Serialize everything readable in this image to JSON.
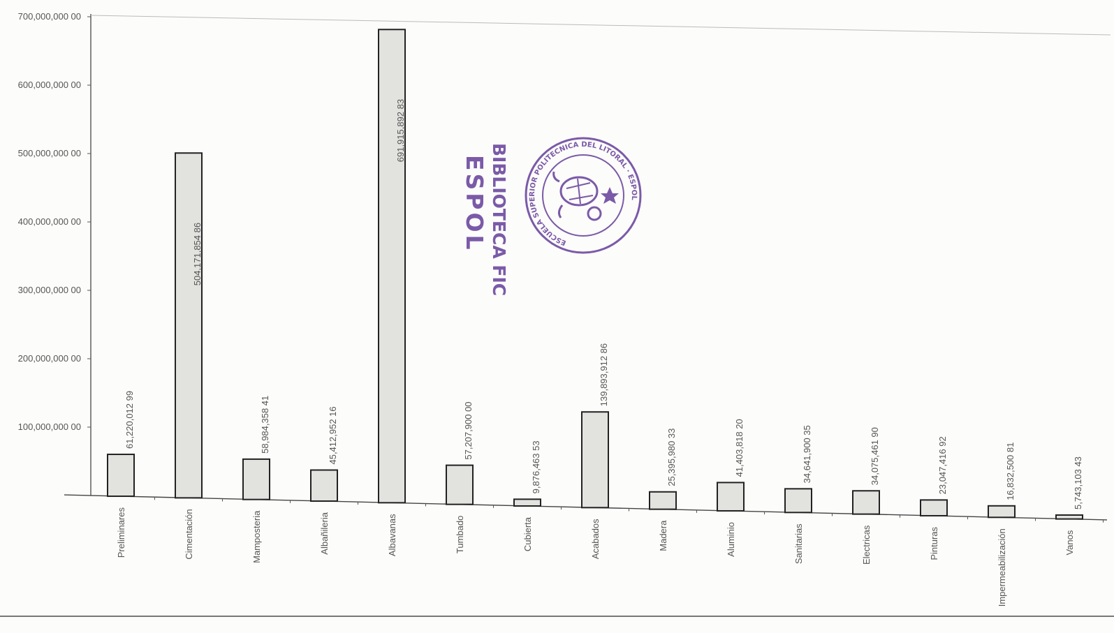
{
  "chart_data": {
    "type": "bar",
    "categories": [
      "Preliminares",
      "Cimentación",
      "Mamposteria",
      "Albañileria",
      "Albavanas",
      "Tumbado",
      "Cubierta",
      "Acabados",
      "Madera",
      "Aluminio",
      "Sanitarias",
      "Electricas",
      "Pinturas",
      "Impermeabilización",
      "Vanos"
    ],
    "values": [
      61220012.99,
      504171854.86,
      58984358.41,
      45412952.16,
      691915892.83,
      57207900.0,
      9876463.53,
      139893912.86,
      25395980.33,
      41403818.2,
      34641900.35,
      34075461.9,
      23047416.92,
      16832500.81,
      5743103.43
    ],
    "value_labels": [
      "61,220,012 99",
      "504,171,854 86",
      "58,984,358 41",
      "45,412,952 16",
      "691,915,892 83",
      "57,207,900 00",
      "9,876,463 53",
      "139,893,912 86",
      "25,395,980 33",
      "41,403,818 20",
      "34,641,900 35",
      "34,075,461 90",
      "23,047,416 92",
      "16,832,500 81",
      "5,743,103 43"
    ],
    "yticks": [
      100000000,
      200000000,
      300000000,
      400000000,
      500000000,
      600000000,
      700000000
    ],
    "ytick_labels": [
      "100,000,000 00",
      "200,000,000 00",
      "300,000,000 00",
      "400,000,000 00",
      "500,000,000 00",
      "600,000,000 00",
      "700,000,000 00"
    ],
    "ylim": [
      0,
      700000000
    ],
    "title": "",
    "xlabel": "",
    "ylabel": "",
    "grid": false,
    "legend": "none",
    "bar_color": "#e2e2df",
    "bar_edge_color": "#222222"
  },
  "stamp": {
    "library_text": "BIBLIOTECA FIC",
    "espol_text": "ESPOL",
    "seal_text": "ESCUELA SUPERIOR POLITECNICA DEL LITORAL · ESPOL",
    "color": "#7b5aa8"
  }
}
